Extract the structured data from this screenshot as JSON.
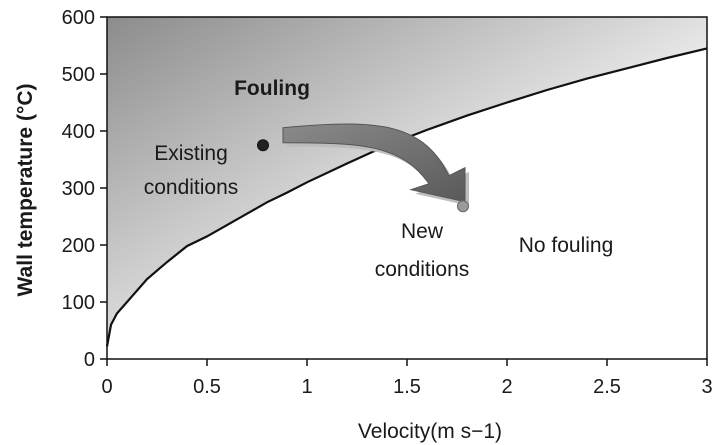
{
  "chart_data": {
    "type": "line",
    "title": "",
    "xlabel": "Velocity(m s−1)",
    "ylabel": "Wall  temperature (°C)",
    "xlim": [
      0,
      3
    ],
    "ylim": [
      0,
      600
    ],
    "x_ticks": [
      0,
      0.5,
      1,
      1.5,
      2,
      2.5,
      3
    ],
    "x_tick_labels": [
      "0",
      "0.5",
      "1",
      "1.5",
      "2",
      "2.5",
      "3"
    ],
    "y_ticks": [
      0,
      100,
      200,
      300,
      400,
      500,
      600
    ],
    "y_tick_labels": [
      "0",
      "100",
      "200",
      "300",
      "400",
      "500",
      "600"
    ],
    "grid": false,
    "series": [
      {
        "x": [
          0,
          0.02,
          0.05,
          0.1,
          0.2,
          0.3,
          0.4,
          0.5,
          0.6,
          0.7,
          0.8,
          0.9,
          1.0,
          1.2,
          1.4,
          1.6,
          1.8,
          2.0,
          2.2,
          2.4,
          2.6,
          2.8,
          3.0
        ],
        "values": [
          22,
          60,
          80,
          100,
          140,
          170,
          198,
          215,
          235,
          255,
          275,
          292,
          310,
          343,
          375,
          402,
          427,
          450,
          472,
          492,
          510,
          528,
          545
        ]
      }
    ],
    "points": [
      {
        "label": "Existing conditions",
        "x": 0.78,
        "y": 375,
        "color": "#222222"
      },
      {
        "label": "New conditions",
        "x": 1.78,
        "y": 268,
        "color": "#9a9a9a"
      }
    ],
    "annotations": {
      "fouling": {
        "line1": "Fouling"
      },
      "existing": {
        "line1": "Existing",
        "line2": "conditions"
      },
      "new": {
        "line1": "New",
        "line2": "conditions"
      },
      "no_fouling": {
        "line1": "No fouling"
      }
    },
    "arrow": {
      "from": [
        0.88,
        390
      ],
      "to": [
        1.78,
        290
      ]
    },
    "colors": {
      "shade_dark": "#8c8c8c",
      "shade_light": "#ffffff",
      "curve": "#111111"
    }
  }
}
